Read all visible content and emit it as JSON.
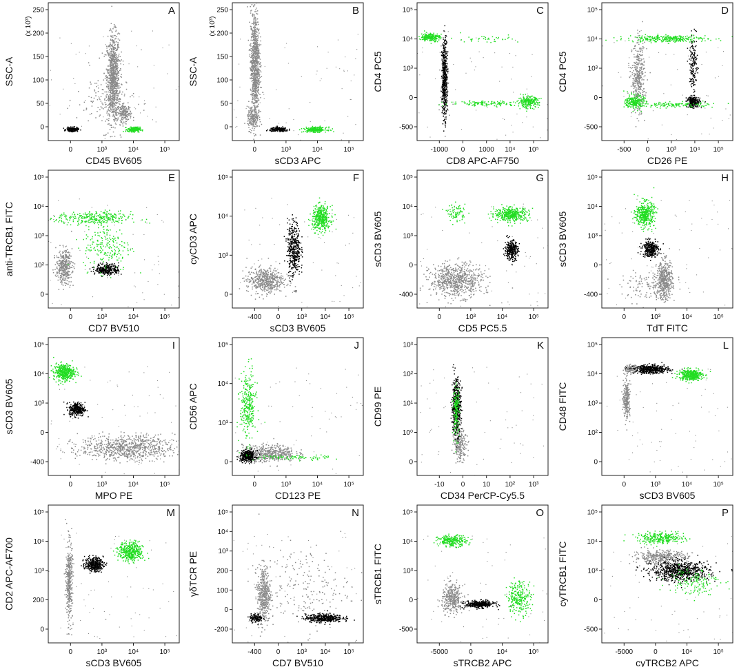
{
  "colors": {
    "gray": "#8a8a8a",
    "black": "#000000",
    "green": "#22dd22",
    "axis": "#222222"
  },
  "chart_data": [
    {
      "type": "scatter",
      "panel_label": "A",
      "xlabel": "CD45 BV605",
      "ylabel": "SSC-A",
      "y_multiplier": "(x 10³)",
      "x_ticks": [
        "0",
        "10³",
        "10⁴",
        "10⁵"
      ],
      "y_ticks": [
        "0",
        "50",
        "100",
        "150",
        "200",
        "250"
      ],
      "xlim": [
        -0.15,
        1.0
      ],
      "ylim": [
        0,
        1.0
      ],
      "populations": [
        {
          "color": "gray",
          "cx": 0.42,
          "cy": 0.45,
          "rx": 0.055,
          "ry": 0.32,
          "n": 950
        },
        {
          "color": "gray",
          "cx": 0.52,
          "cy": 0.2,
          "rx": 0.06,
          "ry": 0.06,
          "n": 180
        },
        {
          "color": "gray",
          "cx": 0.35,
          "cy": 0.3,
          "rx": 0.25,
          "ry": 0.22,
          "n": 120
        },
        {
          "color": "black",
          "cx": 0.06,
          "cy": 0.08,
          "rx": 0.05,
          "ry": 0.015,
          "n": 170
        },
        {
          "color": "green",
          "cx": 0.6,
          "cy": 0.08,
          "rx": 0.055,
          "ry": 0.018,
          "n": 200
        }
      ]
    },
    {
      "type": "scatter",
      "panel_label": "B",
      "xlabel": "sCD3 APC",
      "ylabel": "SSC-A",
      "y_multiplier": "(x 10³)",
      "x_ticks": [
        "0",
        "10³",
        "10⁴",
        "10⁵"
      ],
      "y_ticks": [
        "0",
        "50",
        "100",
        "150",
        "200",
        "250"
      ],
      "xlim": [
        -0.15,
        1.0
      ],
      "ylim": [
        0,
        1.0
      ],
      "populations": [
        {
          "color": "gray",
          "cx": 0.05,
          "cy": 0.55,
          "rx": 0.04,
          "ry": 0.4,
          "n": 950
        },
        {
          "color": "gray",
          "cx": 0.03,
          "cy": 0.16,
          "rx": 0.05,
          "ry": 0.08,
          "n": 160
        },
        {
          "color": "black",
          "cx": 0.26,
          "cy": 0.08,
          "rx": 0.08,
          "ry": 0.015,
          "n": 200
        },
        {
          "color": "green",
          "cx": 0.58,
          "cy": 0.08,
          "rx": 0.1,
          "ry": 0.018,
          "n": 220
        }
      ]
    },
    {
      "type": "scatter",
      "panel_label": "C",
      "xlabel": "CD8 APC-AF750",
      "ylabel": "CD4 PC5",
      "y_multiplier": "",
      "x_ticks": [
        "-1000",
        "0",
        "1000",
        "10⁴",
        "10⁵"
      ],
      "y_ticks": [
        "-500",
        "0",
        "10³",
        "10⁴",
        "10⁵"
      ],
      "xlim": [
        0,
        1.0
      ],
      "ylim": [
        0,
        1.0
      ],
      "populations": [
        {
          "color": "green",
          "cx": 0.1,
          "cy": 0.75,
          "rx": 0.07,
          "ry": 0.03,
          "n": 200
        },
        {
          "color": "black",
          "cx": 0.21,
          "cy": 0.45,
          "rx": 0.02,
          "ry": 0.28,
          "n": 450
        },
        {
          "color": "gray",
          "cx": 0.21,
          "cy": 0.4,
          "rx": 0.03,
          "ry": 0.3,
          "n": 150
        },
        {
          "color": "green",
          "cx": 0.85,
          "cy": 0.28,
          "rx": 0.08,
          "ry": 0.04,
          "n": 220
        },
        {
          "color": "green",
          "cx": 0.55,
          "cy": 0.27,
          "rx": 0.3,
          "ry": 0.02,
          "n": 120
        },
        {
          "color": "green",
          "cx": 0.5,
          "cy": 0.74,
          "rx": 0.3,
          "ry": 0.03,
          "n": 40
        }
      ]
    },
    {
      "type": "scatter",
      "panel_label": "D",
      "xlabel": "CD26 PE",
      "ylabel": "CD4 PC5",
      "y_multiplier": "",
      "x_ticks": [
        "-500",
        "0",
        "10³",
        "10⁴",
        "10⁵"
      ],
      "y_ticks": [
        "-500",
        "0",
        "10³",
        "10⁴",
        "10⁵"
      ],
      "xlim": [
        0,
        1.0
      ],
      "ylim": [
        0,
        1.0
      ],
      "populations": [
        {
          "color": "green",
          "cx": 0.5,
          "cy": 0.74,
          "rx": 0.3,
          "ry": 0.025,
          "n": 280
        },
        {
          "color": "green",
          "cx": 0.25,
          "cy": 0.28,
          "rx": 0.07,
          "ry": 0.05,
          "n": 220
        },
        {
          "color": "green",
          "cx": 0.55,
          "cy": 0.26,
          "rx": 0.3,
          "ry": 0.02,
          "n": 120
        },
        {
          "color": "gray",
          "cx": 0.28,
          "cy": 0.45,
          "rx": 0.05,
          "ry": 0.25,
          "n": 380
        },
        {
          "color": "black",
          "cx": 0.7,
          "cy": 0.28,
          "rx": 0.05,
          "ry": 0.04,
          "n": 230
        },
        {
          "color": "black",
          "cx": 0.7,
          "cy": 0.55,
          "rx": 0.03,
          "ry": 0.2,
          "n": 150
        }
      ]
    },
    {
      "type": "scatter",
      "panel_label": "E",
      "xlabel": "CD7 BV510",
      "ylabel": "anti-TRCB1 FITC",
      "y_multiplier": "",
      "x_ticks": [
        "0",
        "10³",
        "10⁴",
        "10⁵"
      ],
      "y_ticks": [
        "0",
        "10²",
        "10³",
        "10⁴",
        "10⁵"
      ],
      "xlim": [
        0,
        1.0
      ],
      "ylim": [
        0,
        1.0
      ],
      "populations": [
        {
          "color": "green",
          "cx": 0.35,
          "cy": 0.65,
          "rx": 0.28,
          "ry": 0.05,
          "n": 300
        },
        {
          "color": "green",
          "cx": 0.45,
          "cy": 0.45,
          "rx": 0.18,
          "ry": 0.18,
          "n": 200
        },
        {
          "color": "gray",
          "cx": 0.12,
          "cy": 0.3,
          "rx": 0.06,
          "ry": 0.12,
          "n": 380
        },
        {
          "color": "black",
          "cx": 0.45,
          "cy": 0.28,
          "rx": 0.09,
          "ry": 0.04,
          "n": 300
        }
      ]
    },
    {
      "type": "scatter",
      "panel_label": "F",
      "xlabel": "sCD3 BV605",
      "ylabel": "cyCD3 APC",
      "y_multiplier": "",
      "x_ticks": [
        "-400",
        "0",
        "10³",
        "10⁴",
        "10⁵"
      ],
      "y_ticks": [
        "0",
        "10³",
        "10⁴",
        "10⁵"
      ],
      "xlim": [
        0,
        1.0
      ],
      "ylim": [
        0,
        1.0
      ],
      "populations": [
        {
          "color": "gray",
          "cx": 0.25,
          "cy": 0.2,
          "rx": 0.14,
          "ry": 0.09,
          "n": 500
        },
        {
          "color": "black",
          "cx": 0.47,
          "cy": 0.43,
          "rx": 0.05,
          "ry": 0.2,
          "n": 400
        },
        {
          "color": "green",
          "cx": 0.68,
          "cy": 0.65,
          "rx": 0.07,
          "ry": 0.09,
          "n": 400
        }
      ]
    },
    {
      "type": "scatter",
      "panel_label": "G",
      "xlabel": "CD5 PC5.5",
      "ylabel": "sCD3 BV605",
      "y_multiplier": "",
      "x_ticks": [
        "0",
        "10³",
        "10⁴",
        "10⁵"
      ],
      "y_ticks": [
        "-400",
        "0",
        "10³",
        "10⁴",
        "10⁵"
      ],
      "xlim": [
        0,
        1.0
      ],
      "ylim": [
        0,
        1.0
      ],
      "populations": [
        {
          "color": "gray",
          "cx": 0.3,
          "cy": 0.2,
          "rx": 0.2,
          "ry": 0.12,
          "n": 700
        },
        {
          "color": "black",
          "cx": 0.72,
          "cy": 0.42,
          "rx": 0.05,
          "ry": 0.07,
          "n": 300
        },
        {
          "color": "green",
          "cx": 0.72,
          "cy": 0.68,
          "rx": 0.13,
          "ry": 0.05,
          "n": 400
        },
        {
          "color": "green",
          "cx": 0.3,
          "cy": 0.69,
          "rx": 0.07,
          "ry": 0.06,
          "n": 80
        }
      ]
    },
    {
      "type": "scatter",
      "panel_label": "H",
      "xlabel": "TdT FITC",
      "ylabel": "sCD3 BV605",
      "y_multiplier": "",
      "x_ticks": [
        "0",
        "10³",
        "10⁴",
        "10⁵"
      ],
      "y_ticks": [
        "-400",
        "0",
        "10³",
        "10⁴",
        "10⁵"
      ],
      "xlim": [
        0,
        1.0
      ],
      "ylim": [
        0,
        1.0
      ],
      "populations": [
        {
          "color": "green",
          "cx": 0.33,
          "cy": 0.68,
          "rx": 0.07,
          "ry": 0.09,
          "n": 400
        },
        {
          "color": "black",
          "cx": 0.37,
          "cy": 0.43,
          "rx": 0.06,
          "ry": 0.06,
          "n": 300
        },
        {
          "color": "gray",
          "cx": 0.48,
          "cy": 0.2,
          "rx": 0.06,
          "ry": 0.14,
          "n": 450
        },
        {
          "color": "gray",
          "cx": 0.35,
          "cy": 0.15,
          "rx": 0.2,
          "ry": 0.1,
          "n": 120
        }
      ]
    },
    {
      "type": "scatter",
      "panel_label": "I",
      "xlabel": "MPO PE",
      "ylabel": "sCD3 BV605",
      "y_multiplier": "",
      "x_ticks": [
        "0",
        "10³",
        "10⁴",
        "10⁵"
      ],
      "y_ticks": [
        "-400",
        "0",
        "10³",
        "10⁴",
        "10⁵"
      ],
      "xlim": [
        0,
        1.0
      ],
      "ylim": [
        0,
        1.0
      ],
      "populations": [
        {
          "color": "green",
          "cx": 0.12,
          "cy": 0.75,
          "rx": 0.08,
          "ry": 0.06,
          "n": 400
        },
        {
          "color": "black",
          "cx": 0.22,
          "cy": 0.48,
          "rx": 0.06,
          "ry": 0.05,
          "n": 300
        },
        {
          "color": "gray",
          "cx": 0.6,
          "cy": 0.2,
          "rx": 0.36,
          "ry": 0.09,
          "n": 800
        }
      ]
    },
    {
      "type": "scatter",
      "panel_label": "J",
      "xlabel": "CD123 PE",
      "ylabel": "CD56 APC",
      "y_multiplier": "",
      "x_ticks": [
        "0",
        "10³",
        "10⁴",
        "10⁵"
      ],
      "y_ticks": [
        "0",
        "10³",
        "10⁴",
        "10⁵"
      ],
      "xlim": [
        0,
        1.0
      ],
      "ylim": [
        0,
        1.0
      ],
      "populations": [
        {
          "color": "green",
          "cx": 0.12,
          "cy": 0.5,
          "rx": 0.06,
          "ry": 0.25,
          "n": 300
        },
        {
          "color": "gray",
          "cx": 0.28,
          "cy": 0.16,
          "rx": 0.2,
          "ry": 0.06,
          "n": 500
        },
        {
          "color": "black",
          "cx": 0.12,
          "cy": 0.14,
          "rx": 0.06,
          "ry": 0.04,
          "n": 350
        },
        {
          "color": "green",
          "cx": 0.45,
          "cy": 0.13,
          "rx": 0.3,
          "ry": 0.02,
          "n": 80
        }
      ]
    },
    {
      "type": "scatter",
      "panel_label": "K",
      "xlabel": "CD34 PerCP-Cy5.5",
      "ylabel": "CD99 PE",
      "y_multiplier": "",
      "x_ticks": [
        "-10",
        "0",
        "10",
        "10²",
        "10³"
      ],
      "y_ticks": [
        "0",
        "10⁰",
        "10¹",
        "10²",
        "10³"
      ],
      "xlim": [
        0,
        1.0
      ],
      "ylim": [
        0,
        1.0
      ],
      "populations": [
        {
          "color": "black",
          "cx": 0.3,
          "cy": 0.5,
          "rx": 0.035,
          "ry": 0.2,
          "n": 450
        },
        {
          "color": "green",
          "cx": 0.3,
          "cy": 0.47,
          "rx": 0.025,
          "ry": 0.18,
          "n": 150
        },
        {
          "color": "gray",
          "cx": 0.33,
          "cy": 0.22,
          "rx": 0.05,
          "ry": 0.11,
          "n": 200
        }
      ]
    },
    {
      "type": "scatter",
      "panel_label": "L",
      "xlabel": "sCD3 BV605",
      "ylabel": "CD48 FITC",
      "y_multiplier": "",
      "x_ticks": [
        "0",
        "10³",
        "10⁴",
        "10⁵"
      ],
      "y_ticks": [
        "0",
        "10²",
        "10³",
        "10⁴",
        "10⁵"
      ],
      "xlim": [
        0,
        1.0
      ],
      "ylim": [
        0,
        1.0
      ],
      "populations": [
        {
          "color": "black",
          "cx": 0.38,
          "cy": 0.77,
          "rx": 0.13,
          "ry": 0.03,
          "n": 450
        },
        {
          "color": "green",
          "cx": 0.68,
          "cy": 0.73,
          "rx": 0.09,
          "ry": 0.04,
          "n": 380
        },
        {
          "color": "gray",
          "cx": 0.19,
          "cy": 0.55,
          "rx": 0.025,
          "ry": 0.13,
          "n": 250
        },
        {
          "color": "gray",
          "cx": 0.22,
          "cy": 0.77,
          "rx": 0.05,
          "ry": 0.03,
          "n": 120
        }
      ]
    },
    {
      "type": "scatter",
      "panel_label": "M",
      "xlabel": "sCD3 BV605",
      "ylabel": "CD2 APC-AF700",
      "y_multiplier": "",
      "x_ticks": [
        "0",
        "10³",
        "10⁴",
        "10⁵"
      ],
      "y_ticks": [
        "0",
        "200",
        "10³",
        "10⁴",
        "10⁵"
      ],
      "xlim": [
        0,
        1.0
      ],
      "ylim": [
        0,
        1.0
      ],
      "populations": [
        {
          "color": "gray",
          "cx": 0.16,
          "cy": 0.45,
          "rx": 0.025,
          "ry": 0.28,
          "n": 400
        },
        {
          "color": "black",
          "cx": 0.35,
          "cy": 0.57,
          "rx": 0.07,
          "ry": 0.05,
          "n": 350
        },
        {
          "color": "green",
          "cx": 0.63,
          "cy": 0.66,
          "rx": 0.09,
          "ry": 0.07,
          "n": 400
        }
      ]
    },
    {
      "type": "scatter",
      "panel_label": "N",
      "xlabel": "CD7 BV510",
      "ylabel": "γδTCR PE",
      "y_multiplier": "",
      "x_ticks": [
        "-400",
        "0",
        "10³",
        "10⁴",
        "10⁵"
      ],
      "y_ticks": [
        "-200",
        "0",
        "100",
        "200",
        "10³",
        "10⁴",
        "10⁵"
      ],
      "xlim": [
        0,
        1.0
      ],
      "ylim": [
        0,
        1.0
      ],
      "populations": [
        {
          "color": "gray",
          "cx": 0.24,
          "cy": 0.35,
          "rx": 0.05,
          "ry": 0.2,
          "n": 450
        },
        {
          "color": "black",
          "cx": 0.7,
          "cy": 0.18,
          "rx": 0.14,
          "ry": 0.03,
          "n": 400
        },
        {
          "color": "black",
          "cx": 0.18,
          "cy": 0.18,
          "rx": 0.05,
          "ry": 0.03,
          "n": 120
        },
        {
          "color": "gray",
          "cx": 0.55,
          "cy": 0.4,
          "rx": 0.35,
          "ry": 0.3,
          "n": 200
        }
      ]
    },
    {
      "type": "scatter",
      "panel_label": "O",
      "xlabel": "sTRCB2 APC",
      "ylabel": "sTRCB1 FITC",
      "y_multiplier": "",
      "x_ticks": [
        "-5000",
        "0",
        "10⁴",
        "10⁵"
      ],
      "y_ticks": [
        "-500",
        "0",
        "10³",
        "10⁴",
        "10⁵"
      ],
      "xlim": [
        0,
        1.0
      ],
      "ylim": [
        0,
        1.0
      ],
      "populations": [
        {
          "color": "green",
          "cx": 0.27,
          "cy": 0.74,
          "rx": 0.11,
          "ry": 0.04,
          "n": 250
        },
        {
          "color": "gray",
          "cx": 0.27,
          "cy": 0.32,
          "rx": 0.08,
          "ry": 0.1,
          "n": 350
        },
        {
          "color": "black",
          "cx": 0.48,
          "cy": 0.28,
          "rx": 0.11,
          "ry": 0.025,
          "n": 350
        },
        {
          "color": "green",
          "cx": 0.78,
          "cy": 0.33,
          "rx": 0.09,
          "ry": 0.12,
          "n": 250
        }
      ]
    },
    {
      "type": "scatter",
      "panel_label": "P",
      "xlabel": "cyTRCB2 APC",
      "ylabel": "cyTRCB1 FITC",
      "y_multiplier": "",
      "x_ticks": [
        "-5000",
        "0",
        "10⁴",
        "10⁵"
      ],
      "y_ticks": [
        "-500",
        "0",
        "10³",
        "10⁴",
        "10⁵"
      ],
      "xlim": [
        0,
        1.0
      ],
      "ylim": [
        0,
        1.0
      ],
      "populations": [
        {
          "color": "green",
          "cx": 0.45,
          "cy": 0.76,
          "rx": 0.18,
          "ry": 0.04,
          "n": 280
        },
        {
          "color": "gray",
          "cx": 0.45,
          "cy": 0.62,
          "rx": 0.2,
          "ry": 0.05,
          "n": 400
        },
        {
          "color": "black",
          "cx": 0.6,
          "cy": 0.52,
          "rx": 0.22,
          "ry": 0.07,
          "n": 700
        },
        {
          "color": "green",
          "cx": 0.7,
          "cy": 0.45,
          "rx": 0.2,
          "ry": 0.1,
          "n": 150
        }
      ]
    }
  ]
}
